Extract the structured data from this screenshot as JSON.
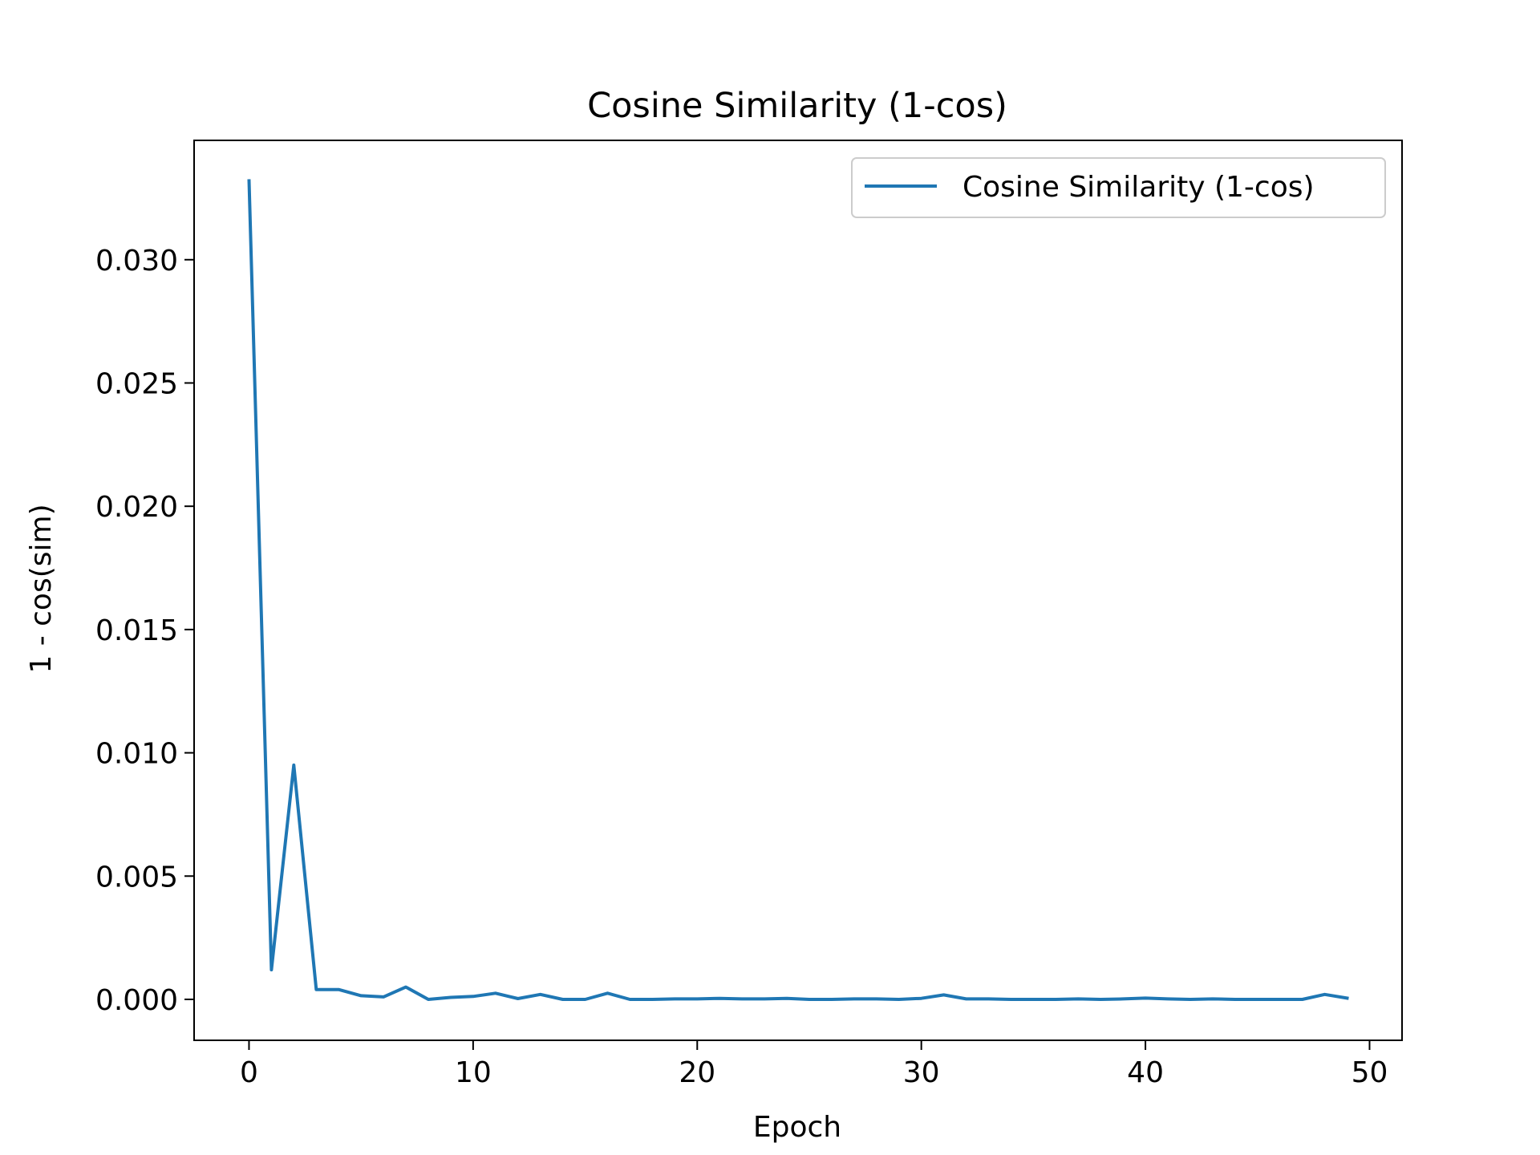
{
  "chart_data": {
    "type": "line",
    "title": "Cosine Similarity (1-cos)",
    "xlabel": "Epoch",
    "ylabel": "1 - cos(sim)",
    "xlim": [
      -2.45,
      51.45
    ],
    "ylim": [
      -0.00166,
      0.03484
    ],
    "xticks": [
      0,
      10,
      20,
      30,
      40,
      50
    ],
    "xtick_labels": [
      "0",
      "10",
      "20",
      "30",
      "40",
      "50"
    ],
    "yticks": [
      0.0,
      0.005,
      0.01,
      0.015,
      0.02,
      0.025,
      0.03
    ],
    "ytick_labels": [
      "0.000",
      "0.005",
      "0.010",
      "0.015",
      "0.020",
      "0.025",
      "0.030"
    ],
    "grid": false,
    "legend_position": "top-right",
    "series": [
      {
        "name": "Cosine Similarity (1-cos)",
        "color": "#1f77b4",
        "x": [
          0,
          1,
          2,
          3,
          4,
          5,
          6,
          7,
          8,
          9,
          10,
          11,
          12,
          13,
          14,
          15,
          16,
          17,
          18,
          19,
          20,
          21,
          22,
          23,
          24,
          25,
          26,
          27,
          28,
          29,
          30,
          31,
          32,
          33,
          34,
          35,
          36,
          37,
          38,
          39,
          40,
          41,
          42,
          43,
          44,
          45,
          46,
          47,
          48,
          49
        ],
        "y": [
          0.0332,
          0.0012,
          0.0095,
          0.0004,
          0.0004,
          0.00015,
          0.0001,
          0.0005,
          0.0,
          8e-05,
          0.00012,
          0.00025,
          3e-05,
          0.0002,
          0.0,
          0.0,
          0.00025,
          0.0,
          0.0,
          2e-05,
          2e-05,
          4e-05,
          2e-05,
          2e-05,
          4e-05,
          0.0,
          0.0,
          2e-05,
          2e-05,
          0.0,
          4e-05,
          0.00018,
          2e-05,
          2e-05,
          0.0,
          0.0,
          0.0,
          2e-05,
          0.0,
          2e-05,
          5e-05,
          2e-05,
          0.0,
          2e-05,
          0.0,
          0.0,
          0.0,
          0.0,
          0.0002,
          5e-05
        ]
      }
    ]
  }
}
